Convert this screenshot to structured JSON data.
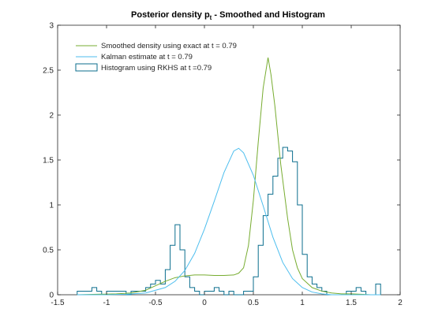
{
  "chart_data": {
    "type": "line",
    "title": "Posterior density p",
    "title_subscript": "t",
    "title_suffix": " - Smoothed and Histogram",
    "xlabel": "",
    "ylabel": "",
    "xlim": [
      -1.5,
      2
    ],
    "ylim": [
      0,
      3
    ],
    "xticks": [
      -1.5,
      -1,
      -0.5,
      0,
      0.5,
      1,
      1.5,
      2
    ],
    "xtick_labels": [
      "-1.5",
      "-1",
      "-0.5",
      "0",
      "0.5",
      "1",
      "1.5",
      "2"
    ],
    "yticks": [
      0,
      0.5,
      1,
      1.5,
      2,
      2.5,
      3
    ],
    "ytick_labels": [
      "0",
      "0.5",
      "1",
      "1.5",
      "2",
      "2.5",
      "3"
    ],
    "grid": false,
    "legend_position": "top-left",
    "series": [
      {
        "name": "Smoothed density using exact at t = 0.79",
        "kind": "line",
        "color": "#77ac30",
        "x": [
          -1.3,
          -1.1,
          -0.9,
          -0.75,
          -0.6,
          -0.5,
          -0.4,
          -0.3,
          -0.2,
          -0.1,
          0,
          0.1,
          0.2,
          0.3,
          0.35,
          0.4,
          0.45,
          0.5,
          0.55,
          0.6,
          0.65,
          0.68,
          0.72,
          0.78,
          0.85,
          0.9,
          0.95,
          1.0,
          1.1,
          1.2,
          1.3,
          1.4,
          1.5,
          1.6,
          1.7,
          1.8
        ],
        "y": [
          0.0,
          0.005,
          0.01,
          0.02,
          0.05,
          0.1,
          0.15,
          0.19,
          0.21,
          0.22,
          0.22,
          0.215,
          0.215,
          0.22,
          0.24,
          0.3,
          0.55,
          1.05,
          1.7,
          2.3,
          2.64,
          2.45,
          2.1,
          1.45,
          0.85,
          0.5,
          0.3,
          0.18,
          0.08,
          0.04,
          0.02,
          0.01,
          0.01,
          0.005,
          0.0,
          0.0
        ]
      },
      {
        "name": "Kalman estimate at t = 0.79",
        "kind": "line",
        "color": "#4dbeee",
        "x": [
          -1.3,
          -1.0,
          -0.8,
          -0.6,
          -0.4,
          -0.3,
          -0.2,
          -0.1,
          0,
          0.1,
          0.2,
          0.3,
          0.35,
          0.4,
          0.5,
          0.6,
          0.7,
          0.8,
          0.9,
          1.0,
          1.1,
          1.2,
          1.3,
          1.5,
          1.8
        ],
        "y": [
          0.0,
          0.0,
          0.005,
          0.02,
          0.08,
          0.15,
          0.27,
          0.46,
          0.73,
          1.04,
          1.36,
          1.6,
          1.63,
          1.58,
          1.33,
          0.99,
          0.64,
          0.36,
          0.18,
          0.08,
          0.03,
          0.01,
          0.0,
          0.0,
          0.0
        ]
      },
      {
        "name": "Histogram using RKHS at t =0.79",
        "kind": "step",
        "color": "#0b6e8e",
        "edges": [
          -1.3,
          -1.25,
          -1.2,
          -1.15,
          -1.1,
          -1.05,
          -1.0,
          -0.95,
          -0.9,
          -0.85,
          -0.8,
          -0.75,
          -0.7,
          -0.65,
          -0.6,
          -0.55,
          -0.5,
          -0.45,
          -0.4,
          -0.35,
          -0.3,
          -0.25,
          -0.2,
          -0.15,
          -0.1,
          -0.05,
          0.0,
          0.05,
          0.1,
          0.15,
          0.2,
          0.25,
          0.3,
          0.35,
          0.4,
          0.45,
          0.5,
          0.55,
          0.6,
          0.65,
          0.7,
          0.75,
          0.8,
          0.85,
          0.9,
          0.95,
          1.0,
          1.05,
          1.1,
          1.15,
          1.2,
          1.25,
          1.3,
          1.35,
          1.4,
          1.45,
          1.5,
          1.55,
          1.6,
          1.65,
          1.7,
          1.75,
          1.8
        ],
        "values": [
          0.04,
          0.04,
          0.04,
          0.08,
          0.04,
          0.0,
          0.04,
          0.04,
          0.04,
          0.04,
          0.0,
          0.04,
          0.04,
          0.04,
          0.08,
          0.12,
          0.16,
          0.12,
          0.28,
          0.55,
          0.78,
          0.5,
          0.2,
          0.08,
          0.04,
          0.0,
          0.04,
          0.04,
          0.08,
          0.04,
          0.0,
          0.04,
          0.0,
          0.0,
          0.04,
          0.04,
          0.2,
          0.55,
          0.88,
          1.12,
          1.32,
          1.52,
          1.64,
          1.6,
          1.48,
          1.0,
          0.45,
          0.2,
          0.12,
          0.08,
          0.04,
          0.0,
          0.0,
          0.0,
          0.0,
          0.04,
          0.04,
          0.08,
          0.04,
          0.0,
          0.0,
          0.12
        ]
      }
    ]
  }
}
